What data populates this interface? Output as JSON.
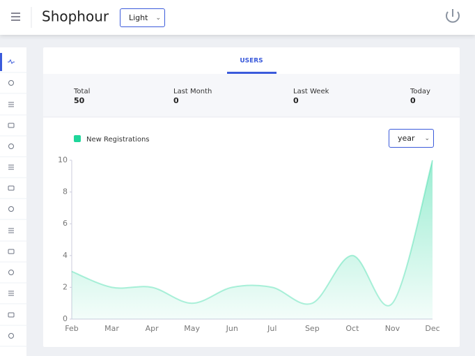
{
  "header": {
    "title": "Shophour",
    "theme": "Light"
  },
  "tabs": [
    "USERS"
  ],
  "stats": [
    {
      "label": "Total",
      "value": 50
    },
    {
      "label": "Last Month",
      "value": 0
    },
    {
      "label": "Last Week",
      "value": 0
    },
    {
      "label": "Today",
      "value": 0
    }
  ],
  "period": "year",
  "chart_data": {
    "type": "area",
    "categories": [
      "Feb",
      "Mar",
      "Apr",
      "May",
      "Jun",
      "Jul",
      "Sep",
      "Oct",
      "Nov",
      "Dec"
    ],
    "series": [
      {
        "name": "New Registrations",
        "color": "#1fd69a",
        "values": [
          3,
          2,
          2,
          1,
          2,
          2,
          1,
          4,
          1,
          10
        ]
      }
    ],
    "ylim": [
      0,
      10
    ],
    "yticks": [
      0,
      2,
      4,
      6,
      8,
      10
    ]
  }
}
